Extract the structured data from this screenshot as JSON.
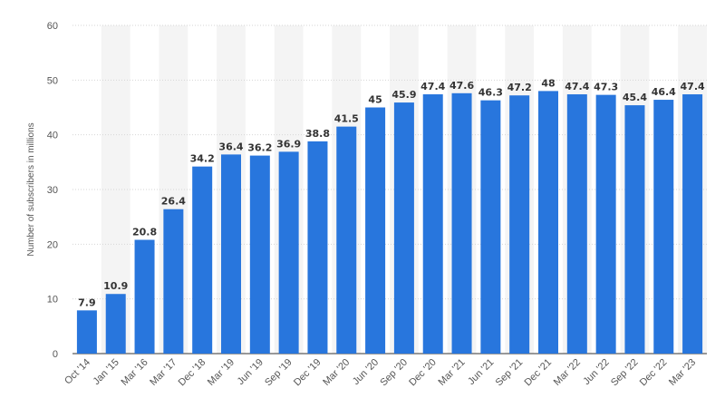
{
  "chart_data": {
    "type": "bar",
    "title": "",
    "xlabel": "",
    "ylabel": "Number of subscribers in millions",
    "ylim": [
      0,
      60
    ],
    "yticks": [
      0,
      10,
      20,
      30,
      40,
      50,
      60
    ],
    "grid": true,
    "legend": "none",
    "categories": [
      "Oct '14",
      "Jan '15",
      "Mar '16",
      "Mar '17",
      "Dec '18",
      "Mar '19",
      "Jun '19",
      "Sep '19",
      "Dec '19",
      "Mar '20",
      "Jun '20",
      "Sep '20",
      "Dec '20",
      "Mar '21",
      "Jun '21",
      "Sep '21",
      "Dec '21",
      "Mar '22",
      "Jun '22",
      "Sep '22",
      "Dec '22",
      "Mar '23"
    ],
    "values": [
      7.9,
      10.9,
      20.8,
      26.4,
      34.2,
      36.4,
      36.2,
      36.9,
      38.8,
      41.5,
      45,
      45.9,
      47.4,
      47.6,
      46.3,
      47.2,
      48,
      47.4,
      47.3,
      45.4,
      46.4,
      47.4
    ],
    "value_labels": [
      "7.9",
      "10.9",
      "20.8",
      "26.4",
      "34.2",
      "36.4",
      "36.2",
      "36.9",
      "38.8",
      "41.5",
      "45",
      "45.9",
      "47.4",
      "47.6",
      "46.3",
      "47.2",
      "48",
      "47.4",
      "47.3",
      "45.4",
      "46.4",
      "47.4"
    ],
    "colors": {
      "bar": "#2876dd",
      "band": "#f4f4f4",
      "grid": "#d6d6d6",
      "axis": "#333333"
    }
  }
}
